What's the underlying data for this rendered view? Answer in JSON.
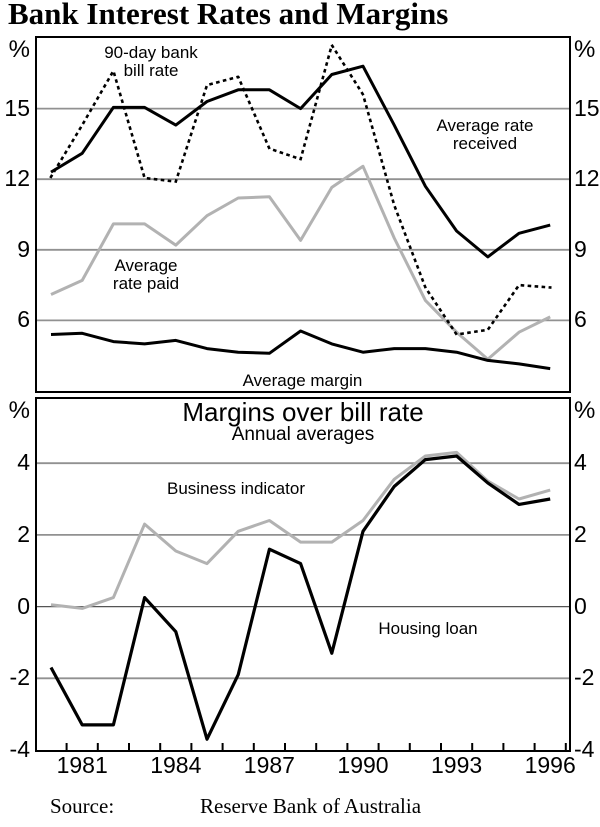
{
  "title": "Bank Interest Rates and Margins",
  "top_panel": {
    "unit_left": "%",
    "unit_right": "%",
    "labels": {
      "bill_rate_line1": "90-day bank",
      "bill_rate_line2": "bill rate",
      "received_line1": "Average rate",
      "received_line2": "received",
      "paid_line1": "Average",
      "paid_line2": "rate paid",
      "margin": "Average margin"
    }
  },
  "bottom_panel": {
    "unit_left": "%",
    "unit_right": "%",
    "heading": "Margins over bill rate",
    "subheading": "Annual averages",
    "labels": {
      "business": "Business indicator",
      "housing": "Housing loan"
    }
  },
  "footer": {
    "source_label": "Source:",
    "source_value": "Reserve Bank of Australia"
  },
  "colors": {
    "black_series": "#000000",
    "gray_series": "#b2b2b2",
    "gridline": "#919191"
  },
  "chart_data": [
    {
      "type": "line",
      "panel": "top",
      "x": [
        1980,
        1981,
        1982,
        1983,
        1984,
        1985,
        1986,
        1987,
        1988,
        1989,
        1990,
        1991,
        1992,
        1993,
        1994,
        1995,
        1996
      ],
      "ylim": [
        3.0,
        18.0
      ],
      "gridlines": [
        15,
        12,
        9,
        6
      ],
      "yticks": [
        15,
        12,
        9,
        6
      ],
      "grid": "horizontal",
      "series": [
        {
          "id": "rate-paid",
          "name": "Average rate paid",
          "style": "solid",
          "color": "#b2b2b2",
          "width": 3,
          "values": [
            7.1,
            7.7,
            10.1,
            10.1,
            9.2,
            10.45,
            11.2,
            11.25,
            9.4,
            11.65,
            12.55,
            9.5,
            6.85,
            5.5,
            4.35,
            5.5,
            6.15
          ]
        },
        {
          "id": "bill-rate",
          "name": "90-day bank bill rate",
          "style": "dotted",
          "color": "#000000",
          "width": 2.6,
          "values": [
            12.1,
            14.3,
            16.6,
            12.05,
            11.9,
            16.0,
            16.35,
            13.3,
            12.85,
            17.7,
            15.6,
            10.9,
            7.4,
            5.4,
            5.6,
            7.5,
            7.4
          ]
        },
        {
          "id": "rate-received",
          "name": "Average rate received",
          "style": "solid",
          "color": "#000000",
          "width": 3,
          "values": [
            12.3,
            13.1,
            15.05,
            15.05,
            14.3,
            15.3,
            15.8,
            15.8,
            15.0,
            16.45,
            16.8,
            14.3,
            11.7,
            9.8,
            8.7,
            9.7,
            10.05
          ]
        },
        {
          "id": "margin",
          "name": "Average margin",
          "style": "solid",
          "color": "#000000",
          "width": 3,
          "values": [
            5.4,
            5.45,
            5.1,
            5.0,
            5.15,
            4.8,
            4.65,
            4.6,
            5.55,
            5.0,
            4.65,
            4.8,
            4.8,
            4.65,
            4.3,
            4.15,
            3.95
          ]
        }
      ]
    },
    {
      "type": "line",
      "panel": "bottom",
      "title": "Margins over bill rate",
      "subtitle": "Annual averages",
      "x": [
        1980,
        1981,
        1982,
        1983,
        1984,
        1985,
        1986,
        1987,
        1988,
        1989,
        1990,
        1991,
        1992,
        1993,
        1994,
        1995,
        1996
      ],
      "ylim": [
        -4,
        5.79
      ],
      "gridlines": [
        4,
        2,
        0,
        -2
      ],
      "yticks": [
        4,
        2,
        0,
        -2,
        -4
      ],
      "xticks": [
        1981,
        1984,
        1987,
        1990,
        1993,
        1996
      ],
      "grid": "horizontal",
      "series": [
        {
          "id": "business-indicator",
          "name": "Business indicator",
          "style": "solid",
          "color": "#b2b2b2",
          "width": 3,
          "values": [
            0.05,
            -0.05,
            0.25,
            2.3,
            1.55,
            1.2,
            2.1,
            2.4,
            1.8,
            1.8,
            2.4,
            3.55,
            4.2,
            4.3,
            3.5,
            3.0,
            3.25
          ]
        },
        {
          "id": "housing-loan",
          "name": "Housing loan",
          "style": "solid",
          "color": "#000000",
          "width": 3.2,
          "values": [
            -1.7,
            -3.3,
            -3.3,
            0.25,
            -0.7,
            -3.7,
            -1.9,
            1.6,
            1.2,
            -1.3,
            2.1,
            3.35,
            4.1,
            4.2,
            3.45,
            2.85,
            3.0
          ]
        }
      ]
    }
  ]
}
